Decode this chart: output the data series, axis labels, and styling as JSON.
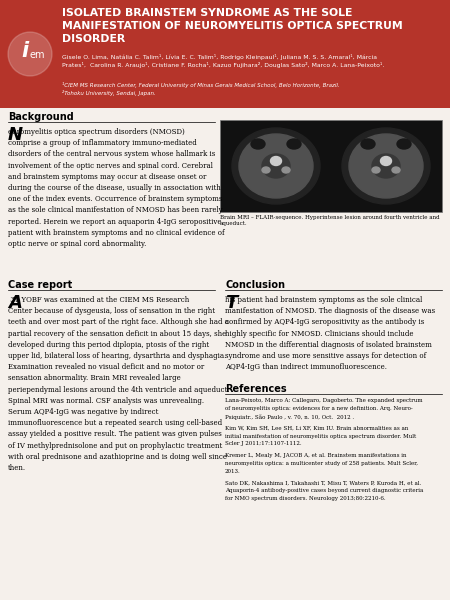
{
  "header_bg": "#b5342a",
  "header_text_color": "#ffffff",
  "body_bg": "#f5f0eb",
  "title": "ISOLATED BRAINSTEM SYNDROME AS THE SOLE\nMANIFESTATION OF NEUROMYELITIS OPTICA SPECTRUM\nDISORDER",
  "authors": "Gisele O. Lima, Natália C. Talim¹, Lívia E. C. Talim¹, Rodrigo Kleinpaul¹, Juliana M. S. S. Amaral¹, Márcia\nPrates¹,  Carolina R. Araujo¹, Cristiane F. Rocha¹, Kazuo Fujihara², Douglas Sato², Marco A. Lana-Peixoto¹.",
  "affiliations": "¹CIEM MS Research Center, Federal University of Minas Gerais Medical School, Belo Horizonte, Brazil.\n²Tohoku University, Sendai, Japan.",
  "background_section": "Background",
  "background_drop_cap": "N",
  "background_text": "euromyelitis optica spectrum disorders (NMOSD)\ncomprise a group of inflammatory immuno-mediated\ndisorders of the central nervous system whose hallmark is\ninvolvement of the optic nerves and spinal cord. Cerebral\nand brainstem symptoms may occur at disease onset or\nduring the course of the disease, usually in association with\none of the index events. Occurrence of brainstem symptoms\nas the sole clinical manifestation of NMOSD has been rarely\nreported. Herein we report an aquaporin 4-IgG seropositive\npatient with brainstem symptoms and no clinical evidence of\noptic nerve or spinal cord abnormality.",
  "image_caption": "Brain MRI – FLAIR-sequence. Hyperintense lesion around fourth ventricle and\naqueduct.",
  "case_section": "Case report",
  "case_drop_cap": "A",
  "case_text": " 31 YOBF was examined at the CIEM MS Research\nCenter because of dysgeusia, loss of sensation in the right\nteeth and over most part of the right face. Although she had a\npartial recovery of the sensation deficit in about 15 days, she\ndeveloped during this period diplopia, ptosis of the right\nupper lid, bilateral loss of hearing, dysarthria and dysphagia.\nExamination revealed no visual deficit and no motor or\nsensation abnormality. Brain MRI revealed large\nperiependymal lesions around the 4th ventricle and aqueduct.\nSpinal MRI was normal. CSF analysis was unrevealing.\nSerum AQP4-IgG was negative by indirect\nimmunofluorescence but a repeated search using cell-based\nassay yielded a positive result. The patient was given pulses\nof IV methylprednisolone and put on prophylactic treatment\nwith oral prednisone and azathioprine and is doing well since\nthen.",
  "conclusion_section": "Conclusion",
  "conclusion_drop_cap": "T",
  "conclusion_text": "his patient had brainstem symptoms as the sole clinical\nmanifestation of NMOSD. The diagnosis of the disease was\nconfirmed by AQP4-IgG seropositivity as the antibody is\nhighly specific for NMOSD. Clinicians should include\nNMOSD in the differential diagnosis of isolated brainstem\nsyndrome and use more sensitive assays for detection of\nAQP4-IgG than indirect immunofluorescence.",
  "references_section": "References",
  "ref1": "Lana-Peixoto, Marco A; Callegaro, Dagoberto. The expanded spectrum\nof neuromyelitis optica: evidences for a new definition. Arq. Neuro-\nPsiquiatr., São Paulo , v. 70, n. 10, Oct.  2012 .",
  "ref2": "Kim W, Kim SH, Lee SH, Li XF, Kim IU. Brain abnormalities as an\ninitial manifestation of neuromyelitis optica spectrum disorder. Mult\nScler J 2011;17:1107-1112.",
  "ref3": "Kremer L, Mealy M, JACOB A, et al. Brainstem manifestations in\nneuromyelitis optica: a multicenter study of 258 patients. Mult Scler,\n2013.",
  "ref4": "Sato DK, Nakashima I, Takahashi T, Misu T, Waters P, Kuroda H, et al.\nAquaporin-4 antibody-positive cases beyond current diagnostic criteria\nfor NMO spectrum disorders. Neurology 2013;80:2210-6."
}
